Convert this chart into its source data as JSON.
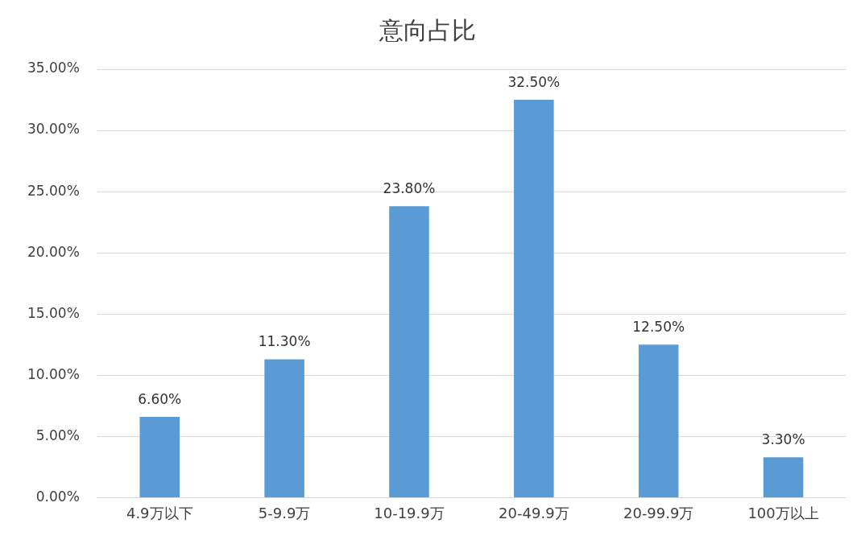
{
  "chart_data": {
    "type": "bar",
    "title": "意向占比",
    "categories": [
      "4.9万以下",
      "5-9.9万",
      "10-19.9万",
      "20-49.9万",
      "20-99.9万",
      "100万以上"
    ],
    "values": [
      6.6,
      11.3,
      23.8,
      32.5,
      12.5,
      3.3
    ],
    "value_labels": [
      "6.60%",
      "11.30%",
      "23.80%",
      "32.50%",
      "12.50%",
      "3.30%"
    ],
    "color": "#5b9bd5",
    "ylim": [
      0,
      35
    ],
    "yticks": [
      {
        "value": 0,
        "label": "0.00%"
      },
      {
        "value": 5,
        "label": "5.00%"
      },
      {
        "value": 10,
        "label": "10.00%"
      },
      {
        "value": 15,
        "label": "15.00%"
      },
      {
        "value": 20,
        "label": "20.00%"
      },
      {
        "value": 25,
        "label": "25.00%"
      },
      {
        "value": 30,
        "label": "30.00%"
      },
      {
        "value": 35,
        "label": "35.00%"
      }
    ],
    "grid": "y"
  }
}
